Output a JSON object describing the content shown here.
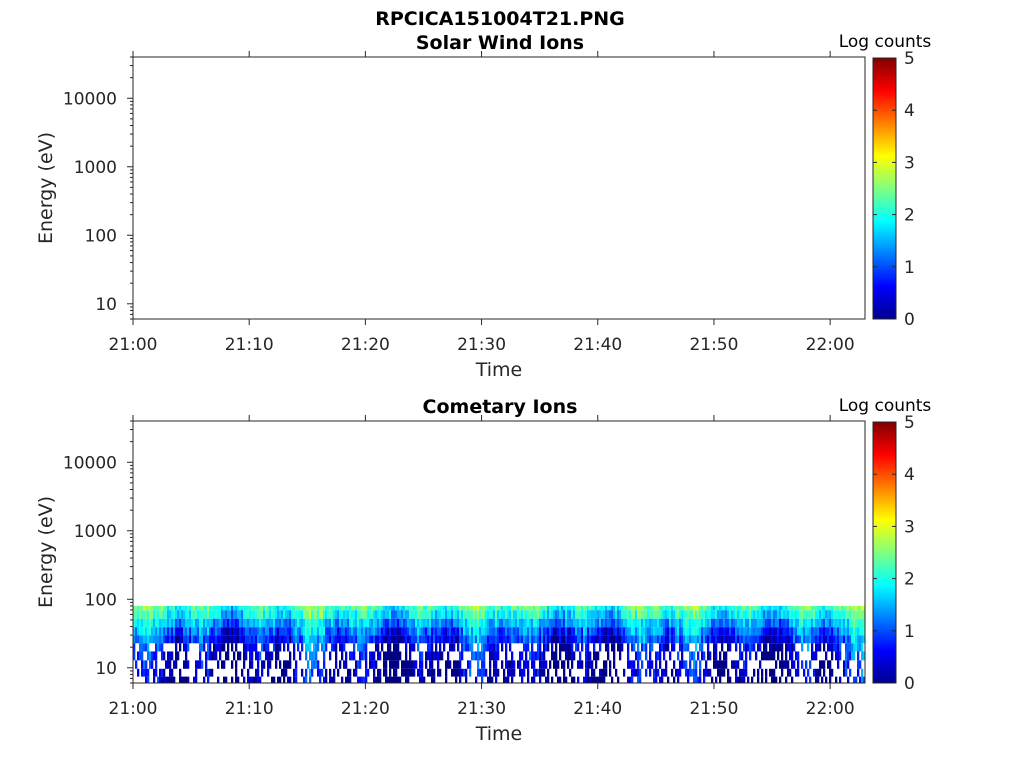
{
  "figure": {
    "title": "RPCICA151004T21.PNG"
  },
  "chart_data": [
    {
      "type": "heatmap",
      "title": "Solar Wind Ions",
      "xlabel": "Time",
      "ylabel": "Energy (eV)",
      "x_ticks": [
        "21:00",
        "21:10",
        "21:20",
        "21:30",
        "21:40",
        "21:50",
        "22:00"
      ],
      "x_range": [
        "21:00",
        "22:03"
      ],
      "y_scale": "log",
      "y_ticks": [
        10,
        100,
        1000,
        10000
      ],
      "y_tick_labels": [
        "10",
        "100",
        "1000",
        "10000"
      ],
      "y_range": [
        6,
        40000
      ],
      "colorbar": {
        "label": "Log counts",
        "range": [
          0,
          5
        ],
        "ticks": [
          "0",
          "1",
          "2",
          "3",
          "4",
          "5"
        ],
        "colormap": "jet"
      },
      "data": {
        "description_energy_band_eV": null,
        "mean_log_counts": null
      }
    },
    {
      "type": "heatmap",
      "title": "Cometary Ions",
      "xlabel": "Time",
      "ylabel": "Energy (eV)",
      "x_ticks": [
        "21:00",
        "21:10",
        "21:20",
        "21:30",
        "21:40",
        "21:50",
        "22:00"
      ],
      "x_range": [
        "21:00",
        "22:03"
      ],
      "y_scale": "log",
      "y_ticks": [
        10,
        100,
        1000,
        10000
      ],
      "y_tick_labels": [
        "10",
        "100",
        "1000",
        "10000"
      ],
      "y_range": [
        6,
        40000
      ],
      "colorbar": {
        "label": "Log counts",
        "range": [
          0,
          5
        ],
        "ticks": [
          "0",
          "1",
          "2",
          "3",
          "4",
          "5"
        ],
        "colormap": "jet"
      },
      "data": {
        "energy_max_eV": 80,
        "energy_min_eV": 6,
        "energy_levels_eV": [
          80,
          60,
          45,
          34,
          26,
          20,
          15,
          11,
          8.5,
          6.5
        ],
        "typical_log_counts": [
          2.2,
          1.9,
          1.5,
          1.1,
          0.8,
          0.6,
          0.4,
          0.3,
          0.2,
          0.15
        ]
      }
    }
  ]
}
